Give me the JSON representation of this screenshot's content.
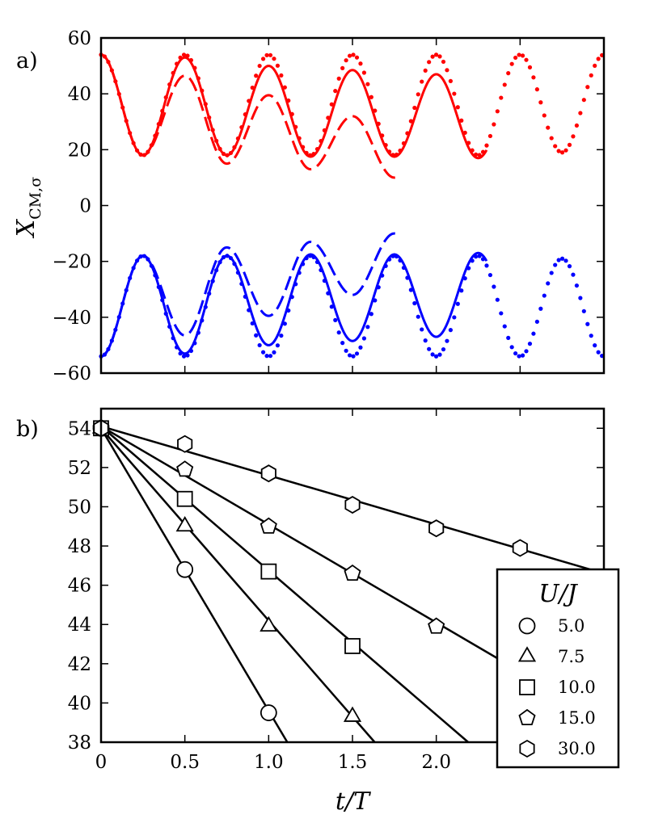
{
  "chart_data": [
    {
      "panel": "a)",
      "type": "line",
      "ylabel_main": "X",
      "ylabel_sub": "CM,σ",
      "xlim": [
        0,
        3.0
      ],
      "ylim": [
        -60,
        60
      ],
      "yticks": [
        -60,
        -40,
        -20,
        0,
        20,
        40,
        60
      ],
      "ytick_labels": [
        "−60",
        "−40",
        "−20",
        "0",
        "20",
        "40",
        "60"
      ],
      "period": 0.5,
      "colors": {
        "upper": "#ff0000",
        "lower": "#0000ff"
      },
      "series": [
        {
          "name": "dotted",
          "style": "dotted",
          "x_end": 3.0,
          "maxima": [
            54,
            54,
            54,
            54,
            54,
            54,
            54
          ],
          "minima": [
            18,
            18,
            18,
            18,
            18,
            19
          ]
        },
        {
          "name": "solid",
          "style": "solid",
          "x_end": 2.3,
          "maxima": [
            54,
            53,
            50,
            48.5,
            47
          ],
          "minima": [
            18,
            18,
            17.5,
            17.5,
            17
          ]
        },
        {
          "name": "dashed",
          "style": "dashed",
          "x_end": 1.78,
          "maxima": [
            54,
            46.5,
            39.5,
            32
          ],
          "minima": [
            18,
            15,
            13,
            10
          ]
        }
      ]
    },
    {
      "panel": "b)",
      "type": "scatter",
      "xlabel": "t/T",
      "xlim": [
        0,
        3.0
      ],
      "ylim": [
        38,
        55
      ],
      "xticks": [
        0,
        0.5,
        1.0,
        1.5,
        2.0
      ],
      "xtick_labels": [
        "0",
        "0.5",
        "1.0",
        "1.5",
        "2.0"
      ],
      "yticks": [
        38,
        40,
        42,
        44,
        46,
        48,
        50,
        52,
        54
      ],
      "ytick_labels": [
        "38",
        "40",
        "42",
        "44",
        "46",
        "48",
        "50",
        "52",
        "54"
      ],
      "legend": {
        "title": "U/J",
        "position": "lower-right"
      },
      "series": [
        {
          "name": "5.0",
          "marker": "circle",
          "x": [
            0,
            0.5,
            1.0
          ],
          "y": [
            54.0,
            46.8,
            39.5
          ],
          "fit": {
            "slope": -14.4,
            "intercept": 54.0
          }
        },
        {
          "name": "7.5",
          "marker": "triangle",
          "x": [
            0,
            0.5,
            1.0,
            1.5
          ],
          "y": [
            54.0,
            49.0,
            43.9,
            39.3
          ],
          "fit": {
            "slope": -9.8,
            "intercept": 54.0
          }
        },
        {
          "name": "10.0",
          "marker": "square",
          "x": [
            0,
            0.5,
            1.0,
            1.5
          ],
          "y": [
            54.0,
            50.4,
            46.7,
            42.9
          ],
          "fit": {
            "slope": -7.35,
            "intercept": 54.1
          }
        },
        {
          "name": "15.0",
          "marker": "pentagon",
          "x": [
            0,
            0.5,
            1.0,
            1.5,
            2.0
          ],
          "y": [
            54.0,
            51.9,
            49.0,
            46.6,
            43.9
          ],
          "fit": {
            "slope": -5.0,
            "intercept": 54.1
          }
        },
        {
          "name": "30.0",
          "marker": "hexagon",
          "x": [
            0,
            0.5,
            1.0,
            1.5,
            2.0,
            2.5
          ],
          "y": [
            54.0,
            53.2,
            51.7,
            50.1,
            48.9,
            47.9
          ],
          "fit": {
            "slope": -2.5,
            "intercept": 54.1
          }
        }
      ]
    }
  ]
}
